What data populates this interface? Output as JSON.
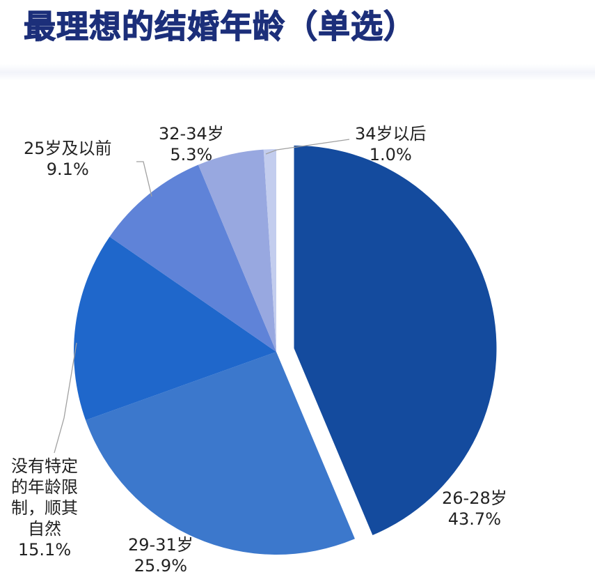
{
  "header": {
    "title": "最理想的结婚年龄（单选）"
  },
  "chart_data": {
    "type": "pie",
    "title": "最理想的结婚年龄（单选）",
    "categories": [
      "26-28岁",
      "29-31岁",
      "没有特定的年龄限制，顺其自然",
      "25岁及以前",
      "32-34岁",
      "34岁以后"
    ],
    "values": [
      43.7,
      25.9,
      15.1,
      9.1,
      5.3,
      1.0
    ],
    "unit": "%",
    "colors": [
      "#144b9e",
      "#3c78cc",
      "#1f67cb",
      "#5f83d8",
      "#98a8e0",
      "#c3cdee"
    ],
    "exploded": [
      "26-28岁"
    ],
    "legend": "none (data labels)"
  },
  "labels": [
    {
      "name": "26-28岁",
      "pct": "43.7%"
    },
    {
      "name": "29-31岁",
      "pct": "25.9%"
    },
    {
      "lines": [
        "没有特定",
        "的年龄限",
        "制，顺其",
        "自然"
      ],
      "pct": "15.1%"
    },
    {
      "name": "25岁及以前",
      "pct": "9.1%"
    },
    {
      "name": "32-34岁",
      "pct": "5.3%"
    },
    {
      "name": "34岁以后",
      "pct": "1.0%"
    }
  ]
}
